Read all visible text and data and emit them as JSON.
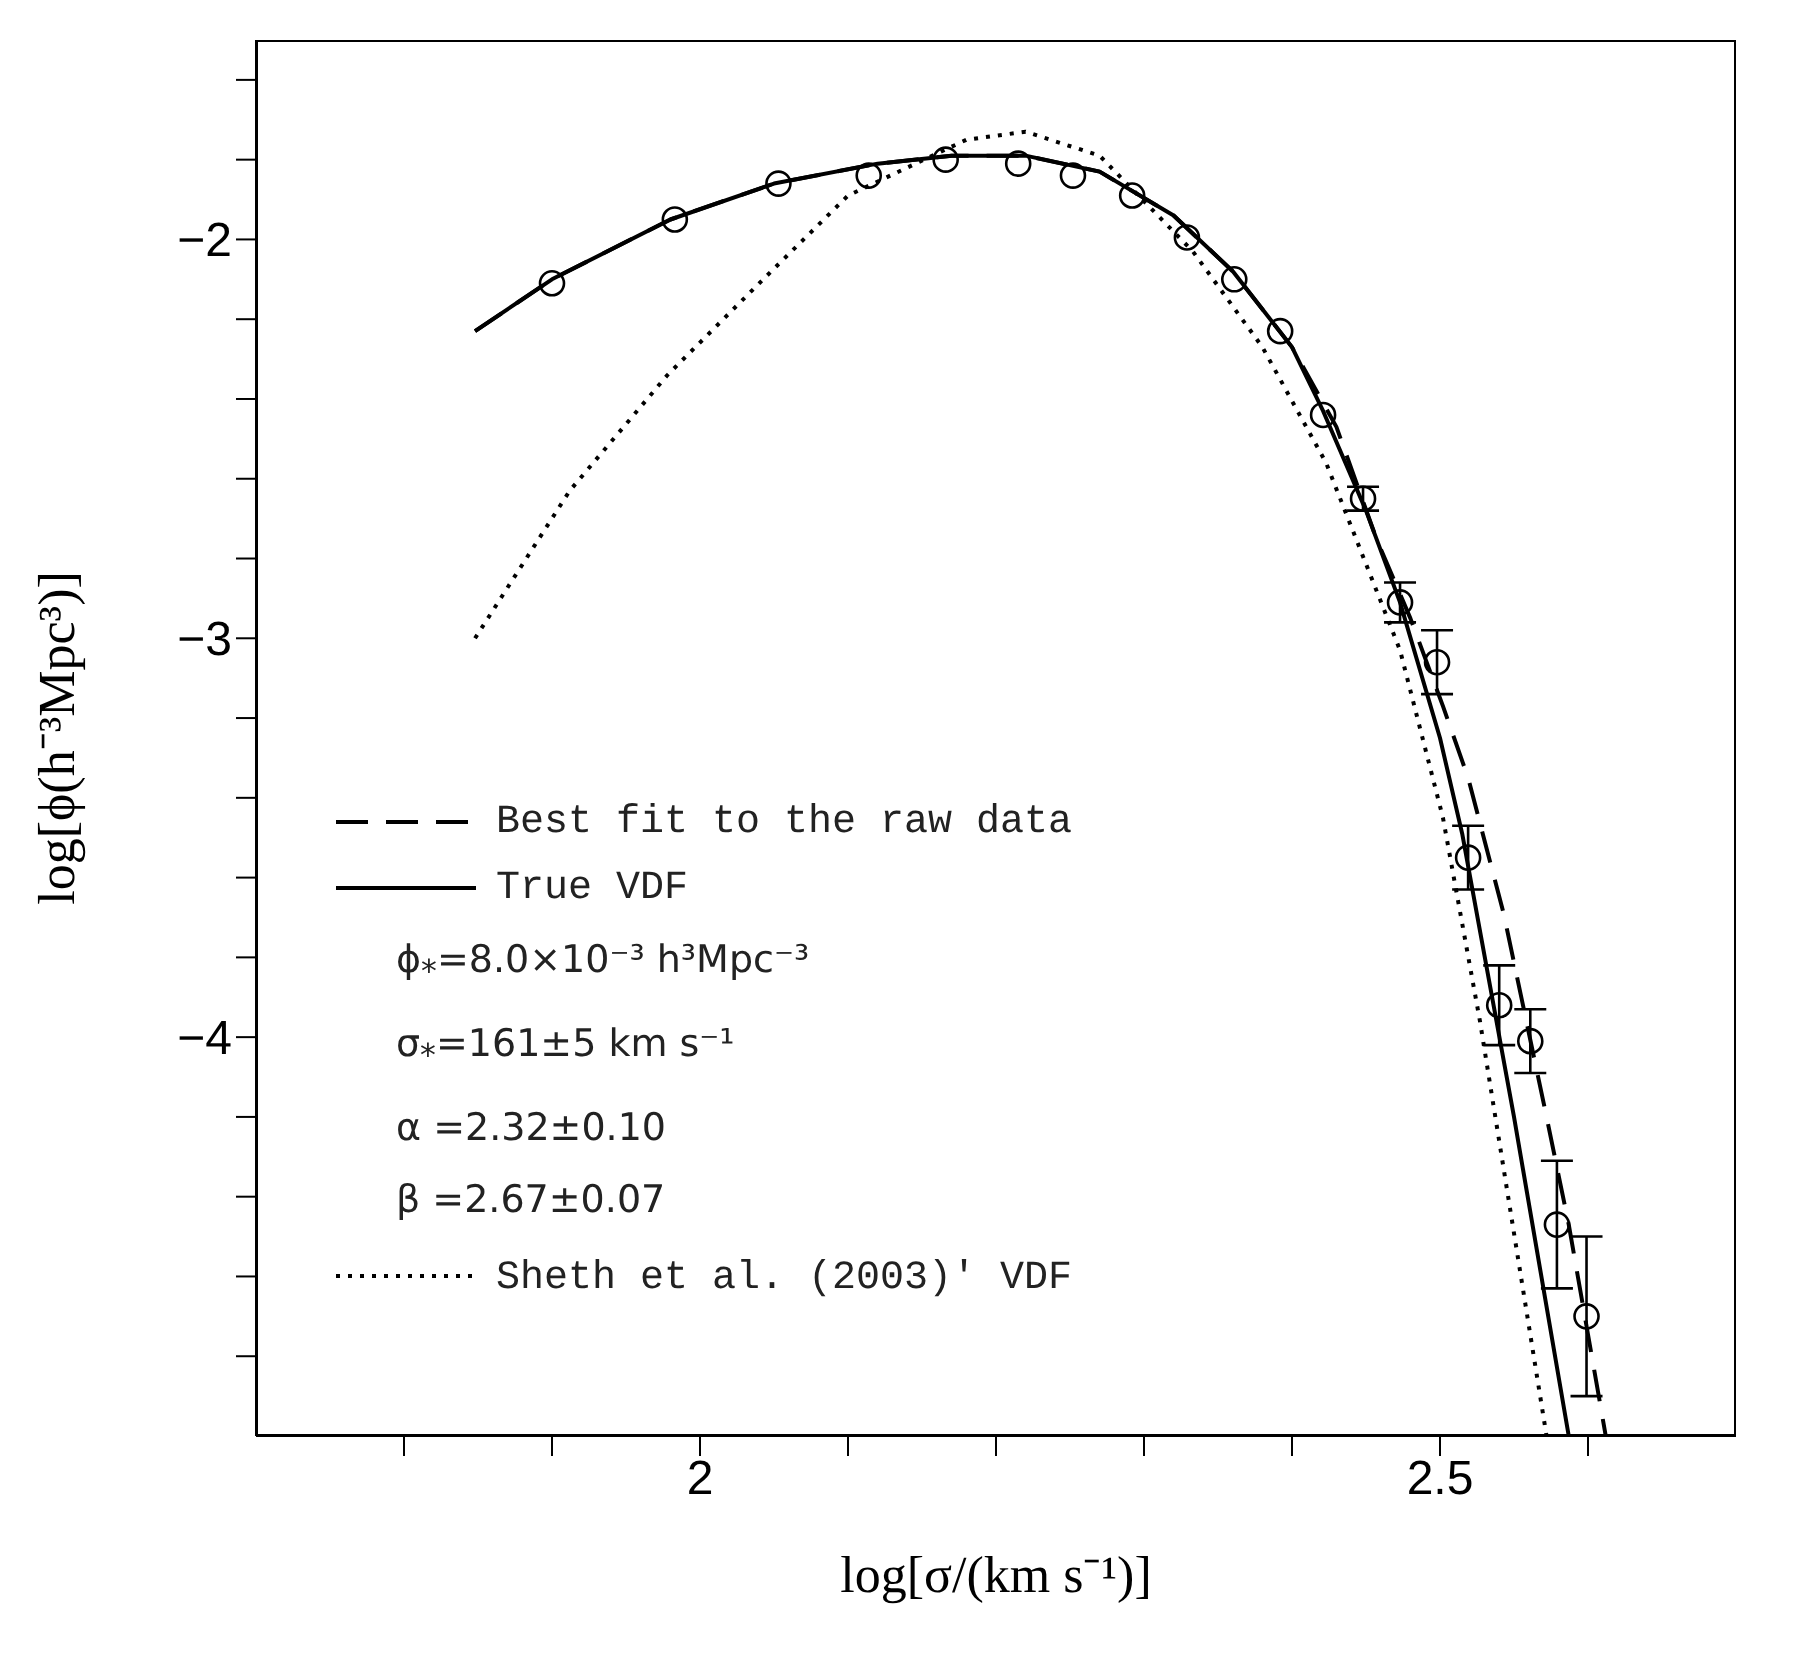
{
  "chart_data": {
    "type": "line",
    "xlabel": "log[σ/(km s⁻¹)]",
    "ylabel": "log[ϕ(h⁻³Mpc³)]",
    "xlim": [
      1.7,
      2.7
    ],
    "xticks": [
      {
        "value": 1.8,
        "label": null
      },
      {
        "value": 1.9,
        "label": null
      },
      2,
      {
        "value": 2.1,
        "label": null
      },
      {
        "value": 2.2,
        "label": null
      },
      {
        "value": 2.3,
        "label": null
      },
      {
        "value": 2.4,
        "label": null
      },
      2.5,
      {
        "value": 2.6,
        "label": null
      }
    ],
    "ylim": [
      -5,
      -1.5
    ],
    "yticks": [
      {
        "value": -1.6,
        "label": null
      },
      {
        "value": -1.8,
        "label": null
      },
      {
        "value": -2,
        "label": "−2"
      },
      {
        "value": -2.2,
        "label": null
      },
      {
        "value": -2.4,
        "label": null
      },
      {
        "value": -2.6,
        "label": null
      },
      {
        "value": -2.8,
        "label": null
      },
      {
        "value": -3,
        "label": "−3"
      },
      {
        "value": -3.2,
        "label": null
      },
      {
        "value": -3.4,
        "label": null
      },
      {
        "value": -3.6,
        "label": null
      },
      {
        "value": -3.8,
        "label": null
      },
      {
        "value": -4,
        "label": "−4"
      },
      {
        "value": -4.2,
        "label": null
      },
      {
        "value": -4.4,
        "label": null
      },
      {
        "value": -4.6,
        "label": null
      },
      {
        "value": -4.8,
        "label": null
      }
    ],
    "legend": "bottom left",
    "annotations": [
      "ϕ$_{*}$=8.0×10⁻³ h³Mpc⁻³",
      "σ$_{*}$=161±5 km s⁻¹",
      "α =2.32±0.10",
      "β =2.67±0.07"
    ],
    "series": [
      {
        "name": "Best fit to the raw data",
        "line_style": "dashed",
        "color": "#000000",
        "x": [
          1.848,
          1.9,
          1.98,
          2.05,
          2.12,
          2.17,
          2.22,
          2.27,
          2.32,
          2.36,
          2.4,
          2.43,
          2.457,
          2.48,
          2.502,
          2.519,
          2.543,
          2.572,
          2.587,
          2.612
        ],
        "values": [
          -2.23,
          -2.1,
          -1.95,
          -1.86,
          -1.81,
          -1.79,
          -1.79,
          -1.83,
          -1.94,
          -2.08,
          -2.27,
          -2.47,
          -2.75,
          -2.95,
          -3.17,
          -3.35,
          -3.69,
          -4.2,
          -4.47,
          -5.0
        ]
      },
      {
        "name": "True VDF",
        "line_style": "solid",
        "color": "#000000",
        "x": [
          1.848,
          1.9,
          1.98,
          2.05,
          2.12,
          2.17,
          2.22,
          2.27,
          2.32,
          2.36,
          2.4,
          2.421,
          2.45,
          2.473,
          2.5,
          2.515,
          2.55,
          2.587
        ],
        "values": [
          -2.23,
          -2.1,
          -1.95,
          -1.86,
          -1.81,
          -1.79,
          -1.79,
          -1.83,
          -1.94,
          -2.08,
          -2.27,
          -2.43,
          -2.68,
          -2.91,
          -3.25,
          -3.49,
          -4.2,
          -5.0
        ]
      },
      {
        "name": "Sheth et al. (2003)' VDF",
        "line_style": "dotted",
        "color": "#000000",
        "x": [
          1.848,
          1.912,
          1.978,
          2.04,
          2.1,
          2.18,
          2.22,
          2.27,
          2.333,
          2.38,
          2.423,
          2.473,
          2.502,
          2.527,
          2.572
        ],
        "values": [
          -3.0,
          -2.63,
          -2.34,
          -2.11,
          -1.89,
          -1.75,
          -1.73,
          -1.79,
          -2.03,
          -2.27,
          -2.56,
          -3.03,
          -3.45,
          -3.96,
          -5.0
        ]
      },
      {
        "type": "scatter",
        "marker": "circle",
        "color": "#000000",
        "x": [
          1.9,
          1.983,
          2.053,
          2.114,
          2.166,
          2.215,
          2.252,
          2.292,
          2.329,
          2.361,
          2.392,
          2.421,
          2.448,
          2.473,
          2.498,
          2.519,
          2.54,
          2.561,
          2.579,
          2.599
        ],
        "values": [
          -2.11,
          -1.95,
          -1.86,
          -1.84,
          -1.8,
          -1.81,
          -1.84,
          -1.89,
          -1.995,
          -2.1,
          -2.23,
          -2.44,
          -2.65,
          -2.91,
          -3.06,
          -3.55,
          -3.92,
          -4.01,
          -4.47,
          -4.7
        ],
        "errors": [
          null,
          null,
          null,
          null,
          null,
          null,
          null,
          null,
          null,
          null,
          null,
          null,
          0.03,
          0.05,
          0.08,
          0.08,
          0.1,
          0.08,
          0.16,
          0.2
        ]
      }
    ]
  }
}
